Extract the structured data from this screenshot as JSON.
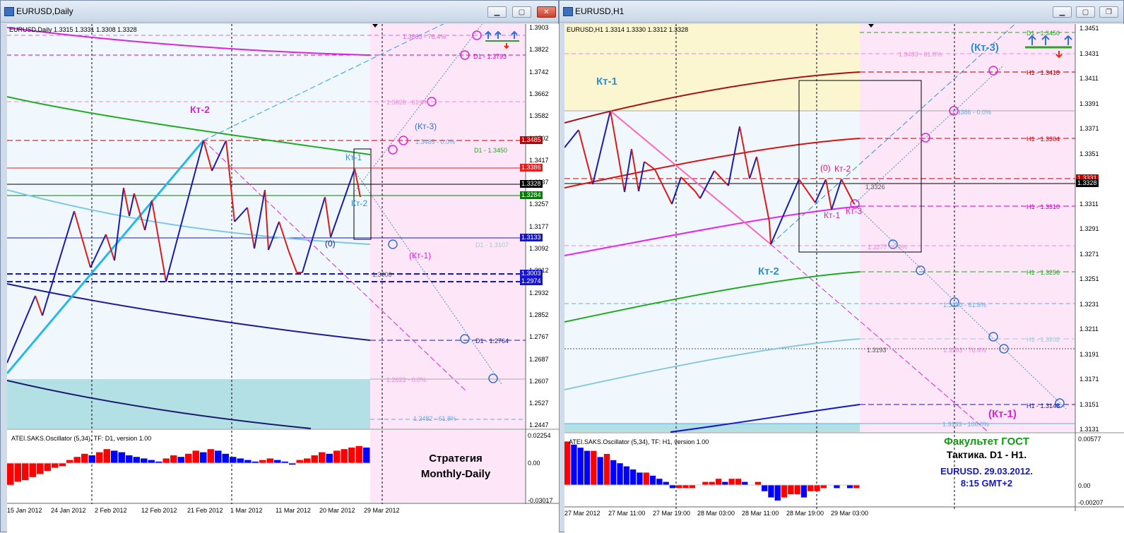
{
  "left": {
    "window_title": "EURUSD,Daily",
    "info": "EURUSD,Daily  1.3315 1.3331 1.3308 1.3328",
    "price_axis": [
      "1.3903",
      "1.3822",
      "1.3742",
      "1.3662",
      "1.3582",
      "1.3502",
      "1.3417",
      "1.3337",
      "1.3257",
      "1.3177",
      "1.3092",
      "1.3012",
      "1.2932",
      "1.2852",
      "1.2767",
      "1.2687",
      "1.2607",
      "1.2527",
      "1.2447"
    ],
    "price_tags": [
      {
        "text": "1.3485",
        "color": "#c00000"
      },
      {
        "text": "1.3386",
        "color": "#e02020"
      },
      {
        "text": "1.3328",
        "color": "#000000"
      },
      {
        "text": "1.3284",
        "color": "#008000"
      },
      {
        "text": "1.3133",
        "color": "#1515d0"
      },
      {
        "text": "1.3003",
        "color": "#1515d0"
      },
      {
        "text": "1.2974",
        "color": "#1515d0"
      }
    ],
    "level_labels": [
      {
        "text": "1.3863 - 76.4%",
        "color": "#dd66dd"
      },
      {
        "text": "D1 - 1.3793",
        "color": "#cc00cc"
      },
      {
        "text": "1.3626 - 61.8%",
        "color": "#ee88dd"
      },
      {
        "text": "1.3485 - 0.0%",
        "color": "#66aadd"
      },
      {
        "text": "D1 - 1.3450",
        "color": "#22aa22"
      },
      {
        "text": "D1 - 1.3107",
        "color": "#99ccdd"
      },
      {
        "text": "1.3006",
        "color": "#555555"
      },
      {
        "text": "D1 - 1.2764",
        "color": "#1a1a99"
      },
      {
        "text": "1.2623 - 0.0%",
        "color": "#ee88dd"
      },
      {
        "text": "1.2482 - 61.8%",
        "color": "#66aadd"
      }
    ],
    "labels": {
      "kt2_big": "Кт-2",
      "kt3": "(Кт-3)",
      "kt1": "Кт-1",
      "kt2": "Кт-2",
      "zero": "(0)",
      "kt1_paren": "(Кт-1)"
    },
    "oscillator": {
      "label": "ATEI.SAKS.Oscillator (5,34), TF: D1, version 1.00",
      "axis": [
        "0.02254",
        "0.00",
        "-0.03017"
      ]
    },
    "strategy": {
      "line1": "Стратегия",
      "line2": "Monthly-Daily"
    },
    "time_axis": [
      "15 Jan 2012",
      "24 Jan 2012",
      "2 Feb 2012",
      "12 Feb 2012",
      "21 Feb 2012",
      "1 Mar 2012",
      "11 Mar 2012",
      "20 Mar 2012",
      "29 Mar 2012"
    ],
    "osc_values": [
      -14,
      -12,
      -11,
      -9,
      -7,
      -5,
      -3,
      -2,
      2,
      4,
      6,
      5,
      7,
      9,
      8,
      7,
      5,
      4,
      3,
      2,
      1,
      3,
      5,
      4,
      6,
      8,
      7,
      9,
      8,
      6,
      4,
      3,
      2,
      1,
      2,
      3,
      2,
      1,
      -1,
      2,
      3,
      5,
      7,
      6,
      8,
      9,
      10,
      11,
      10
    ],
    "colors": {
      "up": "#ff0000",
      "down": "#0000ff",
      "accent": "#2f6fd6"
    }
  },
  "right": {
    "window_title": "EURUSD,H1",
    "info": "EURUSD,H1  1.3314 1.3330 1.3312 1.3328",
    "price_axis": [
      "1.3451",
      "1.3431",
      "1.3411",
      "1.3391",
      "1.3371",
      "1.3351",
      "1.3331",
      "1.3311",
      "1.3291",
      "1.3271",
      "1.3251",
      "1.3231",
      "1.3211",
      "1.3191",
      "1.3171",
      "1.3151",
      "1.3131"
    ],
    "price_tags": [
      {
        "text": "1.3331",
        "color": "#c00000"
      },
      {
        "text": "1.3328",
        "color": "#000000"
      }
    ],
    "level_labels": [
      {
        "text": "D1 - 1.3450",
        "color": "#22aa22"
      },
      {
        "text": "1.3433 - 61.8%",
        "color": "#ee88dd"
      },
      {
        "text": "H1 - 1.3418",
        "color": "#aa0000"
      },
      {
        "text": "1.3386 - 0.0%",
        "color": "#66aadd"
      },
      {
        "text": "H1 - 1.3364",
        "color": "#cc0000"
      },
      {
        "text": "1.3326",
        "color": "#555555"
      },
      {
        "text": "H1 - 1.3310",
        "color": "#cc00cc"
      },
      {
        "text": "1.3277 - 0.0%",
        "color": "#ee88dd"
      },
      {
        "text": "H1 - 1.3256",
        "color": "#22aa22"
      },
      {
        "text": "1.3230 - 61.8%",
        "color": "#66aadd"
      },
      {
        "text": "H1 - 1.3202",
        "color": "#99ccdd"
      },
      {
        "text": "1.3193",
        "color": "#555555"
      },
      {
        "text": "1.3193 - 76.4%",
        "color": "#ee88dd"
      },
      {
        "text": "H1 - 1.3148",
        "color": "#1a1a99"
      },
      {
        "text": "1.3133 - 100.0%",
        "color": "#66aadd"
      }
    ],
    "labels": {
      "kt1": "Кт-1",
      "kt2_big": "Кт-2",
      "kt3_paren": "(Кт-3)",
      "kt1_paren": "(Кт-1)",
      "zero": "(0)",
      "kt2": "Кт-2",
      "kt1_small": "Кт-1",
      "kt3": "Кт-3"
    },
    "oscillator": {
      "label": "ATEI.SAKS.Oscillator (5,34), TF: H1, version 1.00",
      "axis": [
        "0.00577",
        "0.00",
        "-0.00207"
      ]
    },
    "faculty": {
      "line1": "Факультет ГОСТ",
      "line2": "Тактика. D1 - H1.",
      "line3": "EURUSD.  29.03.2012.",
      "line4": "8:15  GMT+2"
    },
    "time_axis": [
      "27 Mar 2012",
      "27 Mar 11:00",
      "27 Mar 19:00",
      "28 Mar 03:00",
      "28 Mar 11:00",
      "28 Mar 19:00",
      "29 Mar 03:00"
    ],
    "osc_values": [
      14,
      13,
      12,
      11,
      11,
      9,
      10,
      8,
      7,
      6,
      5,
      4,
      4,
      3,
      2,
      1,
      -1,
      -1,
      -1,
      -1,
      0,
      1,
      1,
      2,
      1,
      2,
      2,
      1,
      0,
      1,
      -2,
      -4,
      -5,
      -4,
      -3,
      -3,
      -4,
      -2,
      -2,
      -1,
      0,
      -1,
      0,
      -1,
      -1
    ]
  }
}
